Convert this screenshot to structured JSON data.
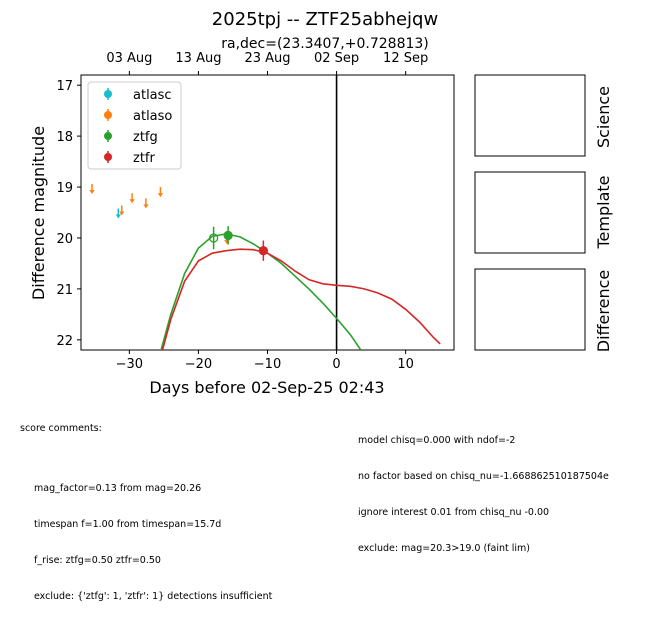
{
  "figure": {
    "title": "2025tpj -- ZTF25abhejqw",
    "subtitle": "ra,dec=(23.3407,+0.728813)",
    "panel_labels": [
      "Science",
      "Template",
      "Difference"
    ]
  },
  "chart_data": {
    "type": "scatter",
    "xlabel": "Days before 02-Sep-25 02:43",
    "ylabel": "Difference magnitude",
    "xlim": [
      -37,
      17
    ],
    "ylim": [
      22.2,
      16.8
    ],
    "y_inverted": true,
    "grid": false,
    "legend_position": "top-left",
    "x_ticks": [
      -30,
      -20,
      -10,
      0,
      10
    ],
    "x_tick_labels": [
      "−30",
      "−20",
      "−10",
      "0",
      "10"
    ],
    "y_ticks": [
      17,
      18,
      19,
      20,
      21,
      22
    ],
    "y_tick_labels": [
      "17",
      "18",
      "19",
      "20",
      "21",
      "22"
    ],
    "top_axis_ticks": [
      -30,
      -20,
      -10,
      0,
      10
    ],
    "top_axis_labels": [
      "03 Aug",
      "13 Aug",
      "23 Aug",
      "02 Sep",
      "12 Sep"
    ],
    "vertical_line_x": 0,
    "series": [
      {
        "name": "atlasc",
        "color": "#17becf",
        "upper_limits": [
          {
            "x": -31.6,
            "y": 19.5
          }
        ]
      },
      {
        "name": "atlaso",
        "color": "#ff7f0e",
        "upper_limits": [
          {
            "x": -35.4,
            "y": 19.02
          },
          {
            "x": -31.1,
            "y": 19.44
          },
          {
            "x": -29.6,
            "y": 19.2
          },
          {
            "x": -27.6,
            "y": 19.3
          },
          {
            "x": -25.5,
            "y": 19.08
          },
          {
            "x": -15.9,
            "y": 20.0
          }
        ]
      },
      {
        "name": "ztfg",
        "color": "#2ca02c",
        "detections": [
          {
            "x": -17.8,
            "y": 20.0,
            "err": 0.22,
            "filled": false
          },
          {
            "x": -15.7,
            "y": 19.95,
            "err": 0.18,
            "filled": true
          }
        ],
        "model": {
          "x": [
            -25.4,
            -24,
            -22,
            -20,
            -18,
            -16,
            -14,
            -12,
            -10,
            -8,
            -6,
            -4,
            -2,
            0,
            2,
            3.5
          ],
          "y": [
            22.2,
            21.5,
            20.7,
            20.2,
            19.97,
            19.92,
            19.98,
            20.12,
            20.3,
            20.5,
            20.75,
            21.0,
            21.28,
            21.58,
            21.9,
            22.2
          ]
        }
      },
      {
        "name": "ztfr",
        "color": "#d62728",
        "detections": [
          {
            "x": -10.6,
            "y": 20.25,
            "err": 0.2,
            "filled": true
          }
        ],
        "model": {
          "x": [
            -25.2,
            -24,
            -22,
            -20,
            -18,
            -16,
            -14,
            -12,
            -10,
            -8,
            -6,
            -4,
            -2,
            0,
            2,
            4,
            6,
            8,
            10,
            12,
            14,
            15
          ],
          "y": [
            22.2,
            21.6,
            20.85,
            20.45,
            20.3,
            20.25,
            20.22,
            20.23,
            20.3,
            20.45,
            20.65,
            20.82,
            20.9,
            20.93,
            20.95,
            21.0,
            21.08,
            21.2,
            21.4,
            21.65,
            21.95,
            22.08
          ]
        }
      }
    ]
  },
  "comments": {
    "left_header": "score comments:",
    "left_lines": [
      "mag_factor=0.13 from mag=20.26",
      "timespan f=1.00 from timespan=15.7d",
      "f_rise: ztfg=0.50 ztfr=0.50",
      "exclude: {'ztfg': 1, 'ztfr': 1} detections insufficient"
    ],
    "right_lines": [
      "model chisq=0.000 with ndof=-2",
      "no factor based on chisq_nu=-1.66886251018750​4e",
      "ignore interest 0.01 from chisq_nu -0.00",
      "exclude: mag=20.3>19.0 (faint lim)"
    ]
  }
}
